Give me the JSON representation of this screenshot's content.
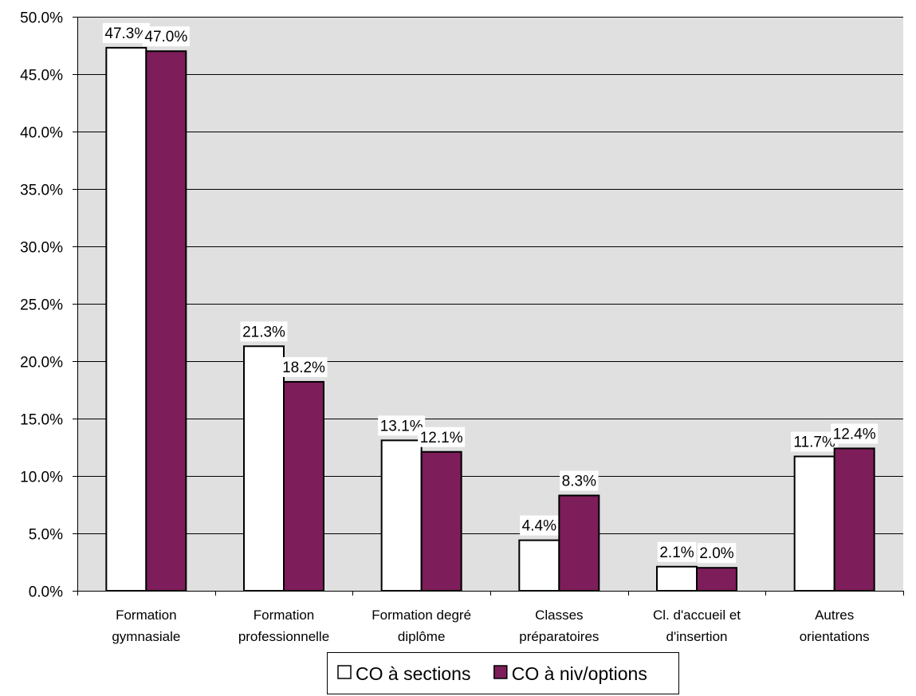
{
  "chart_data": {
    "type": "bar",
    "title": "",
    "xlabel": "",
    "ylabel": "",
    "ylim": [
      0,
      50
    ],
    "ytick_values": [
      0,
      5,
      10,
      15,
      20,
      25,
      30,
      35,
      40,
      45,
      50
    ],
    "ytick_labels": [
      "0.0%",
      "5.0%",
      "10.0%",
      "15.0%",
      "20.0%",
      "25.0%",
      "30.0%",
      "35.0%",
      "40.0%",
      "45.0%",
      "50.0%"
    ],
    "grid": true,
    "legend_position": "bottom",
    "categories": [
      [
        "Formation",
        "gymnasiale"
      ],
      [
        "Formation",
        "professionnelle"
      ],
      [
        "Formation degré",
        "diplôme"
      ],
      [
        "Classes",
        "préparatoires"
      ],
      [
        "Cl. d'accueil et",
        "d'insertion"
      ],
      [
        "Autres",
        "orientations"
      ]
    ],
    "series": [
      {
        "name": "CO à sections",
        "color": "#ffffff",
        "values": [
          47.3,
          21.3,
          13.1,
          4.4,
          2.1,
          11.7
        ],
        "labels": [
          "47.3%",
          "21.3%",
          "13.1%",
          "4.4%",
          "2.1%",
          "11.7%"
        ]
      },
      {
        "name": "CO à niv/options",
        "color": "#7d1d5a",
        "values": [
          47.0,
          18.2,
          12.1,
          8.3,
          2.0,
          12.4
        ],
        "labels": [
          "47.0%",
          "18.2%",
          "12.1%",
          "8.3%",
          "2.0%",
          "12.4%"
        ]
      }
    ],
    "plot_background": "#e0e0e0"
  }
}
